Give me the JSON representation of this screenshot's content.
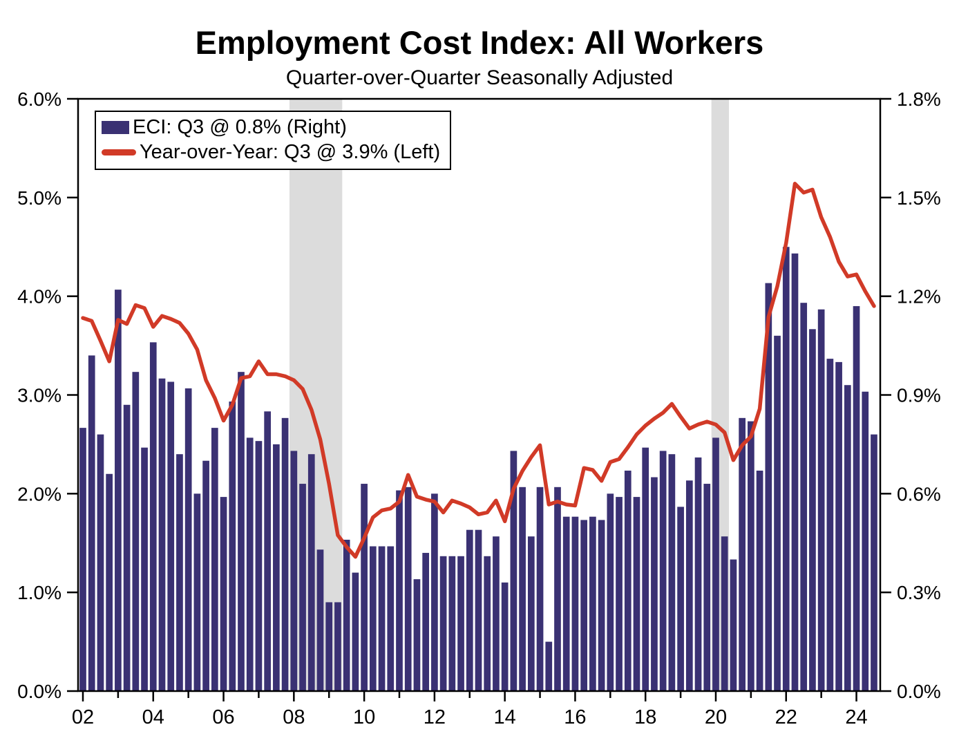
{
  "title": "Employment Cost Index: All Workers",
  "subtitle": "Quarter-over-Quarter Seasonally Adjusted",
  "colors": {
    "bar": "#3a3173",
    "line": "#d13a27",
    "recession_band": "#dcdcdc",
    "axis": "#000000",
    "background": "#ffffff"
  },
  "legend": {
    "position": "top-left",
    "items": [
      {
        "swatch": "bar-square",
        "label": "ECI: Q3 @ 0.8% (Right)"
      },
      {
        "swatch": "line-segment",
        "label": "Year-over-Year: Q3 @ 3.9% (Left)"
      }
    ]
  },
  "chart_data": {
    "type": "bar",
    "subtype": "bar+line dual-axis quarterly time series",
    "grid": false,
    "left_axis": {
      "min": 0.0,
      "max": 6.0,
      "step": 1.0,
      "tick_labels": [
        "0.0%",
        "1.0%",
        "2.0%",
        "3.0%",
        "4.0%",
        "5.0%",
        "6.0%"
      ]
    },
    "right_axis": {
      "min": 0.0,
      "max": 1.8,
      "step": 0.3,
      "tick_labels": [
        "0.0%",
        "0.3%",
        "0.6%",
        "0.9%",
        "1.2%",
        "1.5%",
        "1.8%"
      ]
    },
    "x_axis": {
      "labeled_years": [
        "02",
        "04",
        "06",
        "08",
        "10",
        "12",
        "14",
        "16",
        "18",
        "20",
        "22",
        "24"
      ],
      "first_year": 2002,
      "minor_tick_every_year": true
    },
    "recession_bands": [
      {
        "from": "2008Q1",
        "to": "2009Q2"
      },
      {
        "from": "2020Q1",
        "to": "2020Q2"
      }
    ],
    "categories": [
      "2002Q1",
      "2002Q2",
      "2002Q3",
      "2002Q4",
      "2003Q1",
      "2003Q2",
      "2003Q3",
      "2003Q4",
      "2004Q1",
      "2004Q2",
      "2004Q3",
      "2004Q4",
      "2005Q1",
      "2005Q2",
      "2005Q3",
      "2005Q4",
      "2006Q1",
      "2006Q2",
      "2006Q3",
      "2006Q4",
      "2007Q1",
      "2007Q2",
      "2007Q3",
      "2007Q4",
      "2008Q1",
      "2008Q2",
      "2008Q3",
      "2008Q4",
      "2009Q1",
      "2009Q2",
      "2009Q3",
      "2009Q4",
      "2010Q1",
      "2010Q2",
      "2010Q3",
      "2010Q4",
      "2011Q1",
      "2011Q2",
      "2011Q3",
      "2011Q4",
      "2012Q1",
      "2012Q2",
      "2012Q3",
      "2012Q4",
      "2013Q1",
      "2013Q2",
      "2013Q3",
      "2013Q4",
      "2014Q1",
      "2014Q2",
      "2014Q3",
      "2014Q4",
      "2015Q1",
      "2015Q2",
      "2015Q3",
      "2015Q4",
      "2016Q1",
      "2016Q2",
      "2016Q3",
      "2016Q4",
      "2017Q1",
      "2017Q2",
      "2017Q3",
      "2017Q4",
      "2018Q1",
      "2018Q2",
      "2018Q3",
      "2018Q4",
      "2019Q1",
      "2019Q2",
      "2019Q3",
      "2019Q4",
      "2020Q1",
      "2020Q2",
      "2020Q3",
      "2020Q4",
      "2021Q1",
      "2021Q2",
      "2021Q3",
      "2021Q4",
      "2022Q1",
      "2022Q2",
      "2022Q3",
      "2022Q4",
      "2023Q1",
      "2023Q2",
      "2023Q3",
      "2023Q4",
      "2024Q1",
      "2024Q2",
      "2024Q3"
    ],
    "series": [
      {
        "name": "ECI quarter-over-quarter (bars, right axis, %)",
        "type": "bar",
        "axis": "right",
        "values": [
          0.8,
          1.02,
          0.78,
          0.66,
          1.22,
          0.87,
          0.97,
          0.74,
          1.06,
          0.95,
          0.94,
          0.72,
          0.92,
          0.6,
          0.7,
          0.8,
          0.59,
          0.88,
          0.97,
          0.77,
          0.76,
          0.85,
          0.75,
          0.83,
          0.73,
          0.63,
          0.72,
          0.43,
          0.27,
          0.27,
          0.46,
          0.36,
          0.63,
          0.44,
          0.44,
          0.44,
          0.61,
          0.62,
          0.34,
          0.42,
          0.6,
          0.41,
          0.41,
          0.41,
          0.49,
          0.49,
          0.41,
          0.47,
          0.33,
          0.73,
          0.62,
          0.47,
          0.62,
          0.15,
          0.62,
          0.53,
          0.53,
          0.52,
          0.53,
          0.52,
          0.6,
          0.59,
          0.67,
          0.59,
          0.74,
          0.65,
          0.73,
          0.72,
          0.56,
          0.64,
          0.71,
          0.63,
          0.77,
          0.47,
          0.4,
          0.83,
          0.82,
          0.67,
          1.24,
          1.08,
          1.35,
          1.33,
          1.18,
          1.1,
          1.16,
          1.01,
          1.0,
          0.93,
          1.17,
          0.91,
          0.78
        ]
      },
      {
        "name": "Year-over-Year (line, left axis, %)",
        "type": "line",
        "axis": "left",
        "values": [
          3.78,
          3.75,
          3.55,
          3.34,
          3.76,
          3.72,
          3.91,
          3.88,
          3.69,
          3.8,
          3.77,
          3.73,
          3.62,
          3.46,
          3.15,
          2.97,
          2.74,
          2.9,
          3.17,
          3.19,
          3.34,
          3.21,
          3.21,
          3.19,
          3.15,
          3.06,
          2.85,
          2.55,
          2.1,
          1.58,
          1.46,
          1.36,
          1.55,
          1.76,
          1.83,
          1.85,
          1.92,
          2.19,
          1.97,
          1.94,
          1.92,
          1.81,
          1.93,
          1.9,
          1.86,
          1.79,
          1.81,
          1.93,
          1.72,
          2.05,
          2.23,
          2.37,
          2.49,
          1.89,
          1.92,
          1.89,
          1.88,
          2.26,
          2.24,
          2.13,
          2.32,
          2.35,
          2.47,
          2.6,
          2.69,
          2.76,
          2.82,
          2.91,
          2.78,
          2.66,
          2.7,
          2.73,
          2.7,
          2.62,
          2.34,
          2.49,
          2.58,
          2.86,
          3.79,
          4.1,
          4.54,
          5.14,
          5.05,
          5.08,
          4.8,
          4.6,
          4.35,
          4.2,
          4.22,
          4.05,
          3.9
        ]
      }
    ]
  }
}
